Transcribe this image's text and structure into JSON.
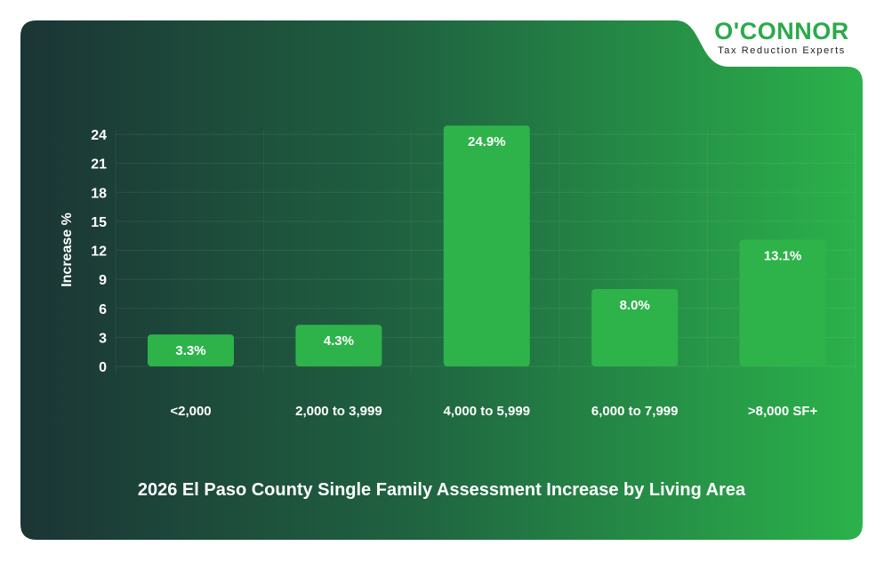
{
  "brand": {
    "name": "O'CONNOR",
    "tagline": "Tax Reduction Experts",
    "color": "#2baa4a"
  },
  "chart_data": {
    "type": "bar",
    "title": "2026 El Paso County Single Family Assessment Increase by Living Area",
    "xlabel": "",
    "ylabel": "Increase %",
    "categories": [
      "<2,000",
      "2,000 to 3,999",
      "4,000 to 5,999",
      "6,000 to 7,999",
      ">8,000 SF+"
    ],
    "values": [
      3.3,
      4.3,
      24.9,
      8.0,
      13.1
    ],
    "data_labels": [
      "3.3%",
      "4.3%",
      "24.9%",
      "8.0%",
      "13.1%"
    ],
    "ylim": [
      0,
      24
    ],
    "yticks": [
      0,
      3,
      6,
      9,
      12,
      15,
      18,
      21,
      24
    ],
    "grid": true,
    "bar_color": "#2db34a"
  }
}
